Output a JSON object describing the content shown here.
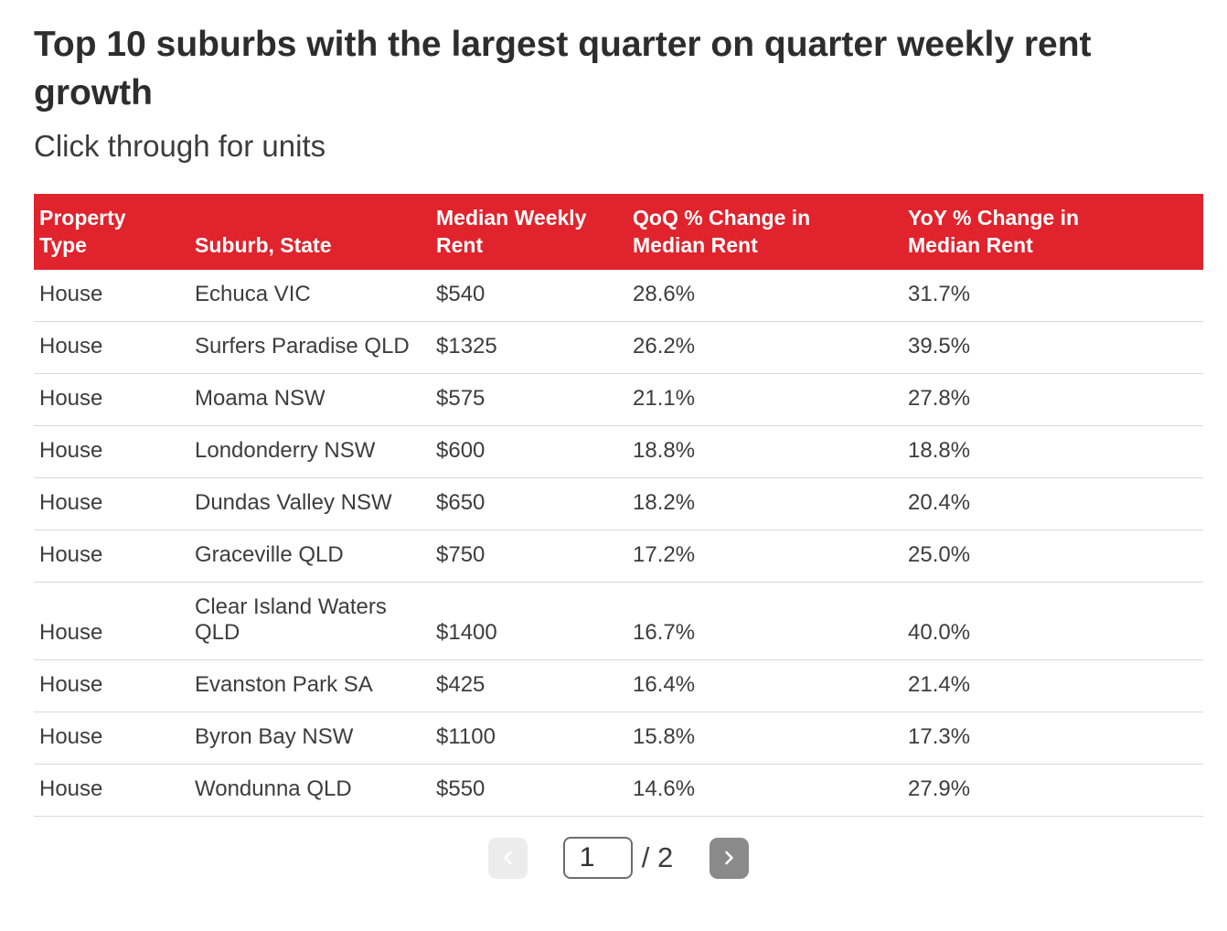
{
  "header": {
    "title": "Top 10 suburbs with the largest quarter on quarter weekly rent growth",
    "subtitle": "Click through for units"
  },
  "chart_data": {
    "type": "table",
    "title": "Top 10 suburbs with the largest quarter on quarter weekly rent growth",
    "subtitle": "Click through for units",
    "columns": [
      "Property Type",
      "Suburb, State",
      "Median Weekly Rent",
      "QoQ % Change in Median Rent",
      "YoY % Change in Median Rent"
    ],
    "rows": [
      [
        "House",
        "Echuca VIC",
        "$540",
        "28.6%",
        "31.7%"
      ],
      [
        "House",
        "Surfers Paradise QLD",
        "$1325",
        "26.2%",
        "39.5%"
      ],
      [
        "House",
        "Moama NSW",
        "$575",
        "21.1%",
        "27.8%"
      ],
      [
        "House",
        "Londonderry NSW",
        "$600",
        "18.8%",
        "18.8%"
      ],
      [
        "House",
        "Dundas Valley NSW",
        "$650",
        "18.2%",
        "20.4%"
      ],
      [
        "House",
        "Graceville QLD",
        "$750",
        "17.2%",
        "25.0%"
      ],
      [
        "House",
        "Clear Island Waters QLD",
        "$1400",
        "16.7%",
        "40.0%"
      ],
      [
        "House",
        "Evanston Park SA",
        "$425",
        "16.4%",
        "21.4%"
      ],
      [
        "House",
        "Byron Bay NSW",
        "$1100",
        "15.8%",
        "17.3%"
      ],
      [
        "House",
        "Wondunna QLD",
        "$550",
        "14.6%",
        "27.9%"
      ]
    ]
  },
  "pagination": {
    "current_page": "1",
    "total_label": "/ 2",
    "prev_icon": "chevron-left-icon",
    "next_icon": "chevron-right-icon",
    "total_pages": 2
  },
  "colors": {
    "header_bg": "#e0232c",
    "header_text": "#ffffff",
    "body_text": "#3d3d3d",
    "title_text": "#2d2d2d",
    "divider": "#d9d9d9",
    "prev_button_bg": "#ececec",
    "next_button_bg": "#8a8a8a"
  }
}
